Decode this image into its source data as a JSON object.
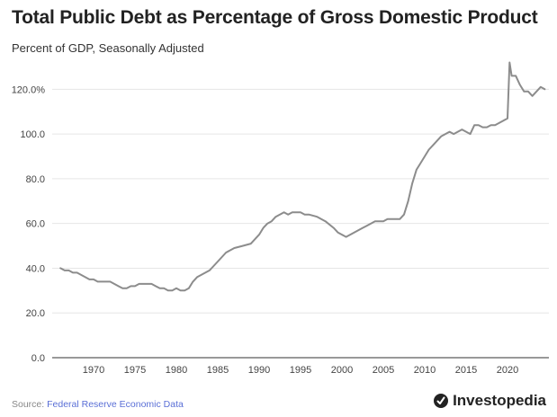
{
  "header": {
    "title": "Total Public Debt as Percentage of Gross Domestic Product",
    "subtitle": "Percent of GDP, Seasonally Adjusted"
  },
  "footer": {
    "source_label": "Source:",
    "source_name": "Federal Reserve Economic Data",
    "brand": "Investopedia"
  },
  "colors": {
    "line": "#8c8c8c",
    "grid": "#e6e6e6",
    "axis_text": "#444444",
    "link": "#5a6fd6"
  },
  "chart_data": {
    "type": "line",
    "title": "Total Public Debt as Percentage of Gross Domestic Product",
    "subtitle": "Percent of GDP, Seasonally Adjusted",
    "xlabel": "",
    "ylabel": "",
    "xlim": [
      1965,
      2025
    ],
    "ylim": [
      0,
      135
    ],
    "grid": true,
    "x_ticks": [
      1970,
      1975,
      1980,
      1985,
      1990,
      1995,
      2000,
      2005,
      2010,
      2015,
      2020
    ],
    "y_ticks": [
      0,
      20,
      40,
      60,
      80,
      100,
      120
    ],
    "y_tick_labels": [
      "0.0",
      "20.0",
      "40.0",
      "60.0",
      "80.0",
      "100.0",
      "120.0%"
    ],
    "series": [
      {
        "x": [
          1966.0,
          1966.5,
          1967.0,
          1967.5,
          1968.0,
          1968.5,
          1969.0,
          1969.5,
          1970.0,
          1970.5,
          1971.0,
          1971.5,
          1972.0,
          1972.5,
          1973.0,
          1973.5,
          1974.0,
          1974.5,
          1975.0,
          1975.5,
          1976.0,
          1976.5,
          1977.0,
          1977.5,
          1978.0,
          1978.5,
          1979.0,
          1979.5,
          1980.0,
          1980.5,
          1981.0,
          1981.5,
          1982.0,
          1982.5,
          1983.0,
          1983.5,
          1984.0,
          1984.5,
          1985.0,
          1985.5,
          1986.0,
          1986.5,
          1987.0,
          1988.0,
          1989.0,
          1990.0,
          1990.5,
          1991.0,
          1991.5,
          1992.0,
          1992.5,
          1993.0,
          1993.5,
          1994.0,
          1995.0,
          1995.5,
          1996.0,
          1997.0,
          1998.0,
          1999.0,
          1999.5,
          2000.0,
          2000.5,
          2001.0,
          2001.5,
          2002.0,
          2002.5,
          2003.0,
          2003.5,
          2004.0,
          2004.5,
          2005.0,
          2005.5,
          2006.0,
          2007.0,
          2007.5,
          2008.0,
          2008.5,
          2009.0,
          2009.5,
          2010.0,
          2010.5,
          2011.0,
          2011.5,
          2012.0,
          2012.5,
          2013.0,
          2013.5,
          2014.0,
          2014.5,
          2015.0,
          2015.5,
          2016.0,
          2016.5,
          2017.0,
          2017.5,
          2018.0,
          2018.5,
          2019.0,
          2019.5,
          2020.0,
          2020.25,
          2020.5,
          2021.0,
          2021.5,
          2022.0,
          2022.5,
          2023.0,
          2023.5,
          2024.0,
          2024.5
        ],
        "y": [
          40,
          39,
          39,
          38,
          38,
          37,
          36,
          35,
          35,
          34,
          34,
          34,
          34,
          33,
          32,
          31,
          31,
          32,
          32,
          33,
          33,
          33,
          33,
          32,
          31,
          31,
          30,
          30,
          31,
          30,
          30,
          31,
          34,
          36,
          37,
          38,
          39,
          41,
          43,
          45,
          47,
          48,
          49,
          50,
          51,
          55,
          58,
          60,
          61,
          63,
          64,
          65,
          64,
          65,
          65,
          64,
          64,
          63,
          61,
          58,
          56,
          55,
          54,
          55,
          56,
          57,
          58,
          59,
          60,
          61,
          61,
          61,
          62,
          62,
          62,
          64,
          70,
          78,
          84,
          87,
          90,
          93,
          95,
          97,
          99,
          100,
          101,
          100,
          101,
          102,
          101,
          100,
          104,
          104,
          103,
          103,
          104,
          104,
          105,
          106,
          107,
          132,
          126,
          126,
          122,
          119,
          119,
          117,
          119,
          121,
          120
        ]
      }
    ]
  }
}
